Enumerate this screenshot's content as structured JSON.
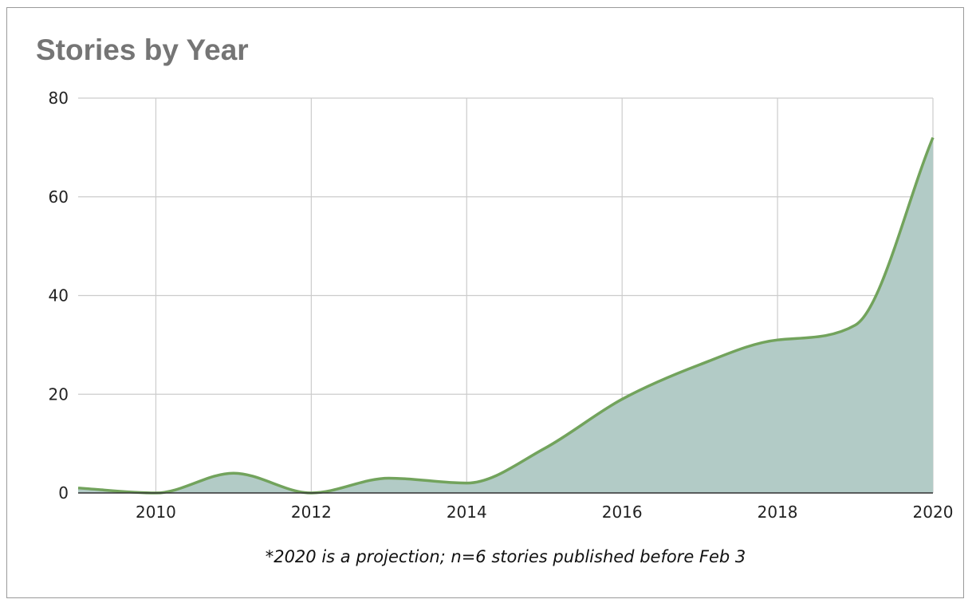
{
  "chart_data": {
    "type": "area",
    "title": "Stories by Year",
    "note": "*2020 is a projection; n=6 stories published before Feb 3",
    "x": [
      2009,
      2010,
      2011,
      2012,
      2013,
      2014,
      2015,
      2016,
      2017,
      2018,
      2019,
      2020
    ],
    "values": [
      1,
      0,
      4,
      0,
      3,
      2,
      9,
      19,
      26,
      31,
      34,
      72
    ],
    "xticks": [
      "2010",
      "2012",
      "2014",
      "2016",
      "2018",
      "2020"
    ],
    "yticks": [
      "0",
      "20",
      "40",
      "60",
      "80"
    ],
    "xlim": [
      2009,
      2020
    ],
    "ylim": [
      0,
      80
    ],
    "grid": true,
    "colors": {
      "line": "#72a35c",
      "fill": "#b2cbc6",
      "grid": "#cccccc",
      "axis": "#333333"
    }
  }
}
